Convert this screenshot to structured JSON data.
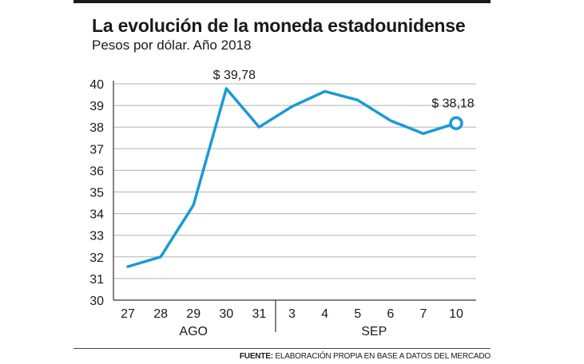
{
  "header": {
    "title": "La evolución de la moneda estadounidense",
    "subtitle": "Pesos por dólar. Año 2018"
  },
  "footer": {
    "source_label": "FUENTE:",
    "source_text": " ELABORACIÓN PROPIA EN BASE A DATOS DEL MERCADO"
  },
  "colors": {
    "line": "#1a9ad6",
    "grid": "#b3b3b3",
    "text": "#1a1a1a"
  },
  "chart_data": {
    "type": "line",
    "title": "La evolución de la moneda estadounidense",
    "subtitle": "Pesos por dólar. Año 2018",
    "xlabel": "",
    "ylabel": "",
    "categories": [
      "27",
      "28",
      "29",
      "30",
      "31",
      "3",
      "4",
      "5",
      "6",
      "7",
      "10"
    ],
    "month_groups": [
      {
        "label": "AGO",
        "start": 0,
        "end": 4
      },
      {
        "label": "SEP",
        "start": 5,
        "end": 10
      }
    ],
    "series": [
      {
        "name": "Pesos por dólar",
        "values": [
          31.55,
          32.0,
          34.4,
          39.78,
          38.0,
          38.95,
          39.65,
          39.25,
          38.3,
          37.7,
          38.18
        ]
      }
    ],
    "ylim": [
      30,
      40
    ],
    "yticks": [
      30,
      31,
      32,
      33,
      34,
      35,
      36,
      37,
      38,
      39,
      40
    ],
    "grid": true,
    "annotations": [
      {
        "index": 3,
        "label": "$ 39,78"
      },
      {
        "index": 10,
        "label": "$ 38,18"
      }
    ],
    "highlight_point": 10
  }
}
